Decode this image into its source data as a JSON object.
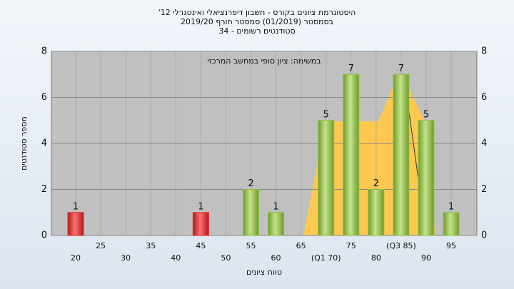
{
  "chart_data": {
    "type": "bar",
    "title": [
      "היסטוגרמת ציונים בקורס - חשבון דיפרנציאלי ואינטגרלי 12'",
      "בסמסטר  (01/2019)  סמסטר חורף 2019/20",
      "סטודנטים רשומים - 34"
    ],
    "annotation": "במשימה: ציון סופי במחשב המרכזי",
    "xlabel": "טווח ציונים",
    "ylabel": "מספר סטודנטים",
    "categories": [
      "20",
      "25",
      "30",
      "35",
      "40",
      "45",
      "50",
      "55",
      "60",
      "65",
      "(Q1 70)",
      "75",
      "80",
      "(Q3 85)",
      "90",
      "95"
    ],
    "values": [
      1,
      0,
      0,
      0,
      0,
      1,
      0,
      2,
      1,
      0,
      5,
      7,
      2,
      7,
      5,
      1
    ],
    "colors": [
      "#e03030",
      "#8fbf3f",
      "#8fbf3f",
      "#8fbf3f",
      "#8fbf3f",
      "#e03030",
      "#8fbf3f",
      "#8fbf3f",
      "#8fbf3f",
      "#8fbf3f",
      "#8fbf3f",
      "#8fbf3f",
      "#8fbf3f",
      "#8fbf3f",
      "#8fbf3f",
      "#8fbf3f"
    ],
    "ylim": [
      0,
      8
    ],
    "yticks": [
      0,
      2,
      4,
      6,
      8
    ],
    "grid": true
  }
}
